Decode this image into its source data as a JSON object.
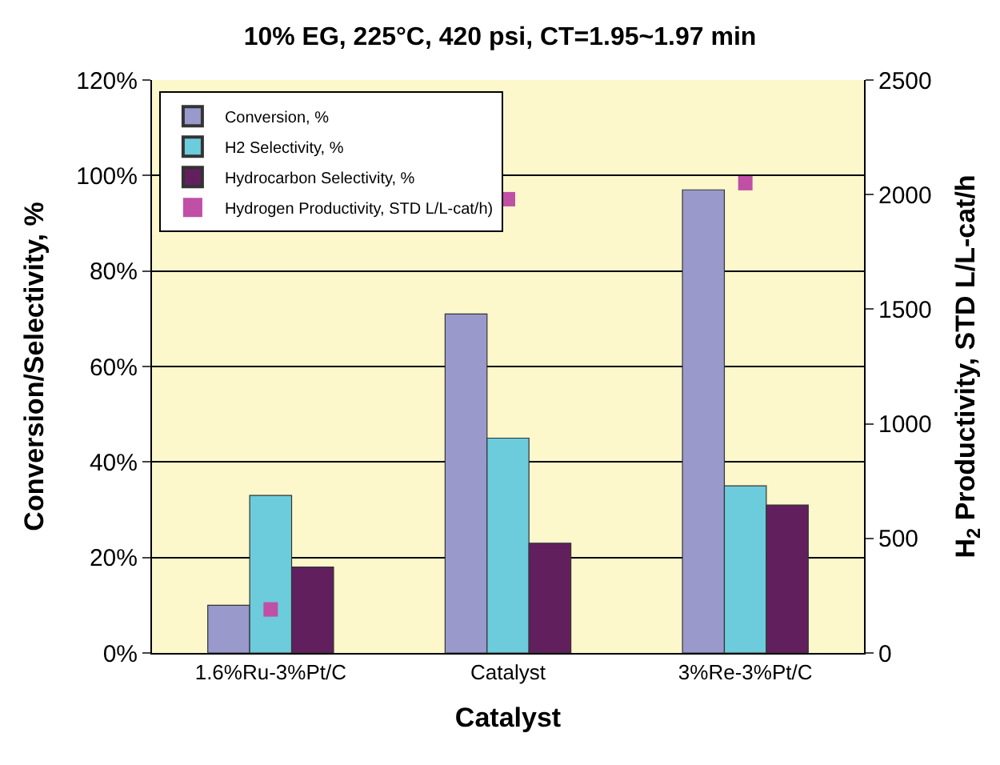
{
  "chart_data": {
    "type": "bar",
    "title": "10% EG, 225°C, 420 psi, CT=1.95~1.97 min",
    "xlabel": "Catalyst",
    "ylabel": "Conversion/Selectivity, %",
    "y2label": "H$_{2}$ Productivity, STD L/L-cat/h",
    "categories": [
      "1.6%Ru-3%Pt/C",
      "Catalyst",
      "3%Re-3%Pt/C"
    ],
    "series": [
      {
        "name": "Conversion, %",
        "color": "#9999cc",
        "values": [
          10,
          71,
          97
        ]
      },
      {
        "name": "H2 Selectivity, %",
        "color": "#6cccdb",
        "values": [
          33,
          45,
          35
        ]
      },
      {
        "name": "Hydrocarbon Selectivity, %",
        "color": "#621f5e",
        "values": [
          18,
          23,
          31
        ]
      },
      {
        "name": "Hydrogen Productivity, STD L/L-cat/h)",
        "color": "#c04fa6",
        "type": "scatter",
        "marker": "square",
        "axis": "y2",
        "values": [
          190,
          1980,
          2050
        ]
      }
    ],
    "ylim": [
      0,
      120
    ],
    "yticks": [
      {
        "value": 0,
        "label": "0%"
      },
      {
        "value": 20,
        "label": "20%"
      },
      {
        "value": 40,
        "label": "40%"
      },
      {
        "value": 60,
        "label": "60%"
      },
      {
        "value": 80,
        "label": "80%"
      },
      {
        "value": 100,
        "label": "100%"
      },
      {
        "value": 120,
        "label": "120%"
      }
    ],
    "y2lim": [
      0,
      2500
    ],
    "y2ticks": [
      0,
      500,
      1000,
      1500,
      2000,
      2500
    ],
    "grid": "y",
    "legend": "top left"
  }
}
